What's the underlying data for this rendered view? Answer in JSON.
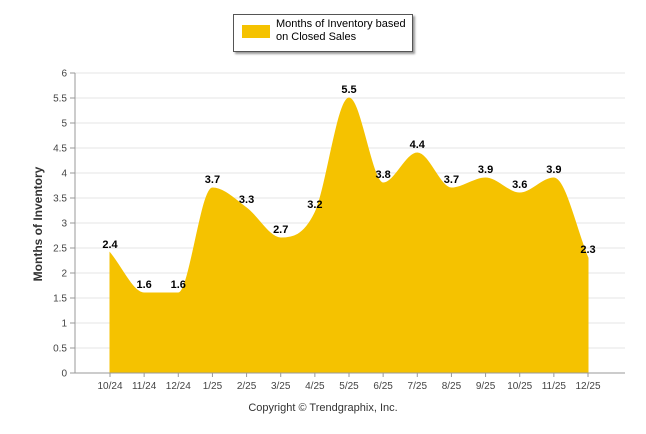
{
  "chart_data": {
    "type": "area",
    "categories": [
      "10/24",
      "11/24",
      "12/24",
      "1/25",
      "2/25",
      "3/25",
      "4/25",
      "5/25",
      "6/25",
      "7/25",
      "8/25",
      "9/25",
      "10/25",
      "11/25",
      "12/25"
    ],
    "series": [
      {
        "name": "Months of Inventory based on Closed Sales",
        "values": [
          2.4,
          1.6,
          1.6,
          3.7,
          3.3,
          2.7,
          3.2,
          5.5,
          3.8,
          4.4,
          3.7,
          3.9,
          3.6,
          3.9,
          2.3
        ],
        "labels": [
          "2.4",
          "1.6",
          "1.6",
          "3.7",
          "3.3",
          "2.7",
          "3.2",
          "5.5",
          "3.8",
          "4.4",
          "3.7",
          "3.9",
          "3.6",
          "3.9",
          "2.3"
        ]
      }
    ],
    "ylabel": "Months of Inventory",
    "xlabel": "",
    "ylim": [
      0,
      6
    ],
    "yticks": [
      "0",
      "0.5",
      "1",
      "1.5",
      "2",
      "2.5",
      "3",
      "3.5",
      "4",
      "4.5",
      "5",
      "5.5",
      "6"
    ],
    "grid": true,
    "legend_position": "top-center"
  },
  "legend": {
    "label": "Months of Inventory based on Closed Sales",
    "color": "#f5c200"
  },
  "footer": {
    "copyright": "Copyright © Trendgraphix, Inc."
  },
  "colors": {
    "area": "#f5c200",
    "grid": "#e6e6e6",
    "axis": "#999999"
  }
}
